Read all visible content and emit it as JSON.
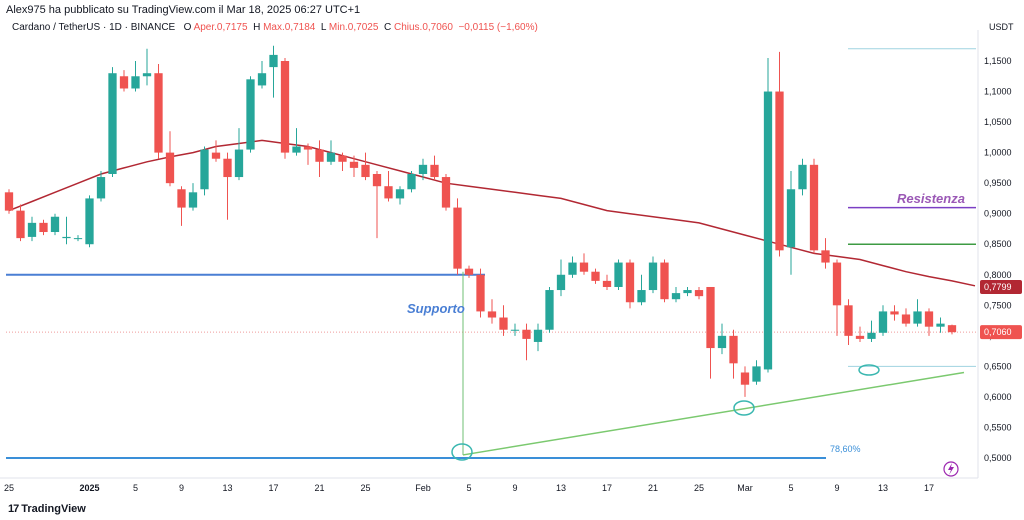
{
  "header": {
    "credit": "Alex975 ha pubblicato su TradingView.com il Mar 18, 2025 06:27 UTC+1",
    "symbol": "Cardano / TetherUS · 1D · BINANCE",
    "o_label": "O",
    "o_value": "Aper.0,7175",
    "h_label": "H",
    "h_value": "Max.0,7184",
    "l_label": "L",
    "l_value": "Min.0,7025",
    "c_label": "C",
    "c_value": "Chius.0,7060",
    "change": "−0,0115 (−1,60%)"
  },
  "branding": {
    "logo_text": "TradingView",
    "logo_mark": "17"
  },
  "colors": {
    "up": "#26a69a",
    "down": "#ef5350",
    "ma": "#b22833",
    "support_line": "#4a7fd4",
    "fib_line": "#3a8fd8",
    "trend": "#7bc96f",
    "resist_purple": "#7b3fc4",
    "resist_green": "#3e9b43"
  },
  "chart_data": {
    "type": "candlestick",
    "y_unit": "USDT",
    "ylim": [
      0.47,
      1.19
    ],
    "y_ticks": [
      "1,1500",
      "1,1000",
      "1,0500",
      "1,0000",
      "0,9500",
      "0,9000",
      "0,8500",
      "0,8000",
      "0,7500",
      "0,7000",
      "0,6500",
      "0,6000",
      "0,5500",
      "0,5000"
    ],
    "y_tick_values": [
      1.15,
      1.1,
      1.05,
      1.0,
      0.95,
      0.9,
      0.85,
      0.8,
      0.75,
      0.7,
      0.65,
      0.6,
      0.55,
      0.5
    ],
    "x_ticks": [
      "25",
      "2025",
      "5",
      "9",
      "13",
      "17",
      "21",
      "25",
      "Feb",
      "5",
      "9",
      "13",
      "17",
      "21",
      "25",
      "Mar",
      "5",
      "9",
      "13",
      "17"
    ],
    "x_tick_index": [
      0,
      7,
      11,
      15,
      19,
      23,
      27,
      31,
      36,
      40,
      44,
      48,
      52,
      56,
      60,
      64,
      68,
      72,
      76,
      80
    ],
    "candles": [
      [
        0.935,
        0.905,
        0.94,
        0.9
      ],
      [
        0.905,
        0.86,
        0.915,
        0.855
      ],
      [
        0.862,
        0.885,
        0.895,
        0.855
      ],
      [
        0.885,
        0.87,
        0.89,
        0.865
      ],
      [
        0.87,
        0.895,
        0.9,
        0.865
      ],
      [
        0.86,
        0.862,
        0.895,
        0.85
      ],
      [
        0.86,
        0.86,
        0.865,
        0.855
      ],
      [
        0.85,
        0.925,
        0.93,
        0.845
      ],
      [
        0.925,
        0.96,
        0.97,
        0.92
      ],
      [
        0.965,
        1.13,
        1.14,
        0.96
      ],
      [
        1.125,
        1.105,
        1.135,
        1.1
      ],
      [
        1.105,
        1.125,
        1.15,
        1.1
      ],
      [
        1.125,
        1.13,
        1.17,
        1.11
      ],
      [
        1.13,
        1.0,
        1.145,
        0.99
      ],
      [
        1.0,
        0.95,
        1.035,
        0.945
      ],
      [
        0.94,
        0.91,
        0.945,
        0.88
      ],
      [
        0.91,
        0.935,
        0.95,
        0.905
      ],
      [
        0.94,
        1.005,
        1.01,
        0.93
      ],
      [
        1.0,
        0.99,
        1.02,
        0.985
      ],
      [
        0.99,
        0.96,
        1.0,
        0.89
      ],
      [
        0.96,
        1.005,
        1.04,
        0.955
      ],
      [
        1.005,
        1.12,
        1.125,
        1.0
      ],
      [
        1.11,
        1.13,
        1.15,
        1.105
      ],
      [
        1.14,
        1.16,
        1.175,
        1.09
      ],
      [
        1.15,
        1.0,
        1.155,
        0.99
      ],
      [
        1.0,
        1.01,
        1.04,
        0.995
      ],
      [
        1.01,
        1.005,
        1.015,
        0.98
      ],
      [
        1.005,
        0.985,
        1.02,
        0.96
      ],
      [
        0.985,
        1.0,
        1.02,
        0.98
      ],
      [
        0.995,
        0.985,
        1.0,
        0.97
      ],
      [
        0.985,
        0.975,
        0.995,
        0.96
      ],
      [
        0.98,
        0.96,
        1.0,
        0.955
      ],
      [
        0.965,
        0.945,
        0.97,
        0.86
      ],
      [
        0.945,
        0.925,
        0.97,
        0.92
      ],
      [
        0.925,
        0.94,
        0.945,
        0.915
      ],
      [
        0.94,
        0.965,
        0.97,
        0.935
      ],
      [
        0.965,
        0.98,
        0.99,
        0.955
      ],
      [
        0.98,
        0.96,
        0.995,
        0.955
      ],
      [
        0.96,
        0.91,
        0.965,
        0.905
      ],
      [
        0.91,
        0.81,
        0.925,
        0.8
      ],
      [
        0.81,
        0.8,
        0.815,
        0.795
      ],
      [
        0.8,
        0.74,
        0.81,
        0.73
      ],
      [
        0.74,
        0.73,
        0.76,
        0.72
      ],
      [
        0.73,
        0.71,
        0.75,
        0.7
      ],
      [
        0.71,
        0.71,
        0.72,
        0.7
      ],
      [
        0.71,
        0.695,
        0.72,
        0.66
      ],
      [
        0.69,
        0.71,
        0.72,
        0.675
      ],
      [
        0.71,
        0.775,
        0.78,
        0.705
      ],
      [
        0.775,
        0.8,
        0.825,
        0.765
      ],
      [
        0.8,
        0.82,
        0.83,
        0.795
      ],
      [
        0.82,
        0.805,
        0.835,
        0.8
      ],
      [
        0.805,
        0.79,
        0.81,
        0.785
      ],
      [
        0.79,
        0.78,
        0.8,
        0.775
      ],
      [
        0.78,
        0.82,
        0.825,
        0.775
      ],
      [
        0.82,
        0.755,
        0.825,
        0.745
      ],
      [
        0.755,
        0.775,
        0.8,
        0.75
      ],
      [
        0.775,
        0.82,
        0.83,
        0.77
      ],
      [
        0.82,
        0.76,
        0.825,
        0.755
      ],
      [
        0.76,
        0.77,
        0.78,
        0.755
      ],
      [
        0.77,
        0.775,
        0.78,
        0.765
      ],
      [
        0.775,
        0.765,
        0.78,
        0.76
      ],
      [
        0.78,
        0.68,
        0.78,
        0.63
      ],
      [
        0.68,
        0.7,
        0.72,
        0.67
      ],
      [
        0.7,
        0.655,
        0.71,
        0.63
      ],
      [
        0.64,
        0.62,
        0.65,
        0.6
      ],
      [
        0.625,
        0.65,
        0.66,
        0.62
      ],
      [
        0.645,
        1.1,
        1.155,
        0.64
      ],
      [
        1.1,
        0.84,
        1.165,
        0.83
      ],
      [
        0.845,
        0.94,
        0.97,
        0.8
      ],
      [
        0.94,
        0.98,
        0.99,
        0.93
      ],
      [
        0.98,
        0.84,
        0.99,
        0.835
      ],
      [
        0.84,
        0.82,
        0.86,
        0.81
      ],
      [
        0.82,
        0.75,
        0.825,
        0.7
      ],
      [
        0.75,
        0.7,
        0.76,
        0.685
      ],
      [
        0.7,
        0.695,
        0.715,
        0.69
      ],
      [
        0.695,
        0.705,
        0.725,
        0.69
      ],
      [
        0.705,
        0.74,
        0.75,
        0.7
      ],
      [
        0.74,
        0.735,
        0.75,
        0.725
      ],
      [
        0.735,
        0.72,
        0.745,
        0.715
      ],
      [
        0.72,
        0.74,
        0.76,
        0.715
      ],
      [
        0.74,
        0.715,
        0.745,
        0.7
      ],
      [
        0.715,
        0.72,
        0.73,
        0.705
      ],
      [
        0.7175,
        0.706,
        0.7184,
        0.7025
      ]
    ],
    "ma_values": [
      0.905,
      0.92,
      0.935,
      0.95,
      0.965,
      0.975,
      0.985,
      0.993,
      1.0,
      1.01,
      1.015,
      1.02,
      1.015,
      1.01,
      1.0,
      0.99,
      0.98,
      0.97,
      0.96,
      0.95,
      0.945,
      0.94,
      0.935,
      0.93,
      0.925,
      0.915,
      0.905,
      0.9,
      0.895,
      0.89,
      0.885,
      0.875,
      0.865,
      0.855,
      0.845,
      0.835,
      0.83,
      0.825,
      0.815,
      0.805,
      0.797,
      0.79,
      0.782
    ],
    "ma_start_index": 0,
    "ma_step": 2,
    "annotations": {
      "support": "Supporto",
      "resistance": "Resistenza",
      "fib": "78,60%"
    },
    "levels": {
      "support_h": 0.8,
      "fib_h": 0.5,
      "resist_purple": 0.91,
      "resist_green": 0.85,
      "cyan_top": 1.17,
      "cyan_low": 0.65
    },
    "price_labels": {
      "ma": "0,7799",
      "last": "0,7060"
    },
    "ma_value_printed": 0.7799,
    "last_value_printed": 0.706
  }
}
